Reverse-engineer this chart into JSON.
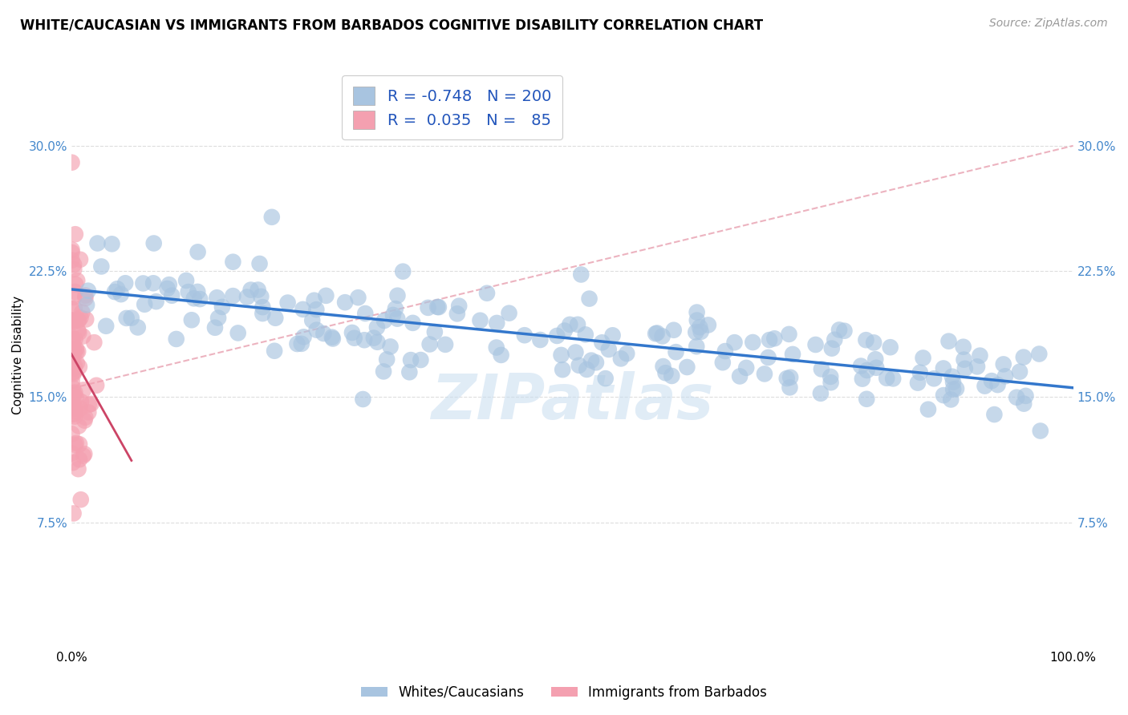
{
  "title": "WHITE/CAUCASIAN VS IMMIGRANTS FROM BARBADOS COGNITIVE DISABILITY CORRELATION CHART",
  "source": "Source: ZipAtlas.com",
  "ylabel": "Cognitive Disability",
  "xlim": [
    0,
    1.0
  ],
  "ylim": [
    0,
    0.35
  ],
  "yticks": [
    0.075,
    0.15,
    0.225,
    0.3
  ],
  "ytick_labels": [
    "7.5%",
    "15.0%",
    "22.5%",
    "30.0%"
  ],
  "xticks": [
    0.0,
    1.0
  ],
  "xtick_labels": [
    "0.0%",
    "100.0%"
  ],
  "blue_R": -0.748,
  "blue_N": 200,
  "pink_R": 0.035,
  "pink_N": 85,
  "blue_color": "#a8c4e0",
  "blue_line_color": "#3377cc",
  "pink_color": "#f4a0b0",
  "pink_line_color": "#cc4466",
  "pink_dash_color": "#e8a0b0",
  "legend_label_blue": "Whites/Caucasians",
  "legend_label_pink": "Immigrants from Barbados",
  "background_color": "#ffffff",
  "grid_color": "#dddddd",
  "title_fontsize": 12,
  "source_fontsize": 10,
  "seed": 42
}
